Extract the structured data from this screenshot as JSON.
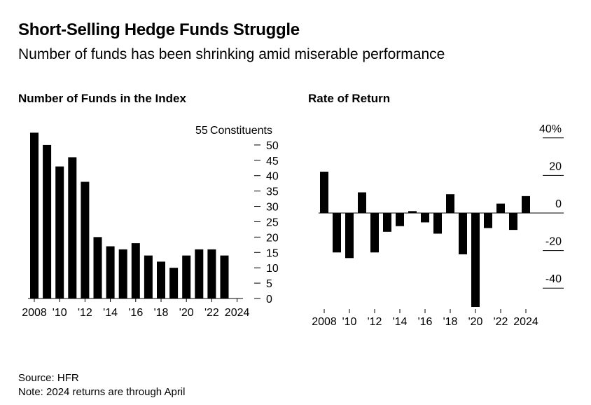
{
  "title": "Short-Selling Hedge Funds Struggle",
  "subtitle": "Number of funds has been shrinking amid miserable performance",
  "source": "Source: HFR",
  "note": "Note: 2024 returns are through April",
  "chart_data": [
    {
      "type": "bar",
      "title": "Number of Funds in the Index",
      "unit_label": "Constituents",
      "categories": [
        "2008",
        "2009",
        "2010",
        "2011",
        "2012",
        "2013",
        "2014",
        "2015",
        "2016",
        "2017",
        "2018",
        "2019",
        "2020",
        "2021",
        "2022",
        "2023",
        "2024"
      ],
      "values": [
        54,
        50,
        43,
        46,
        38,
        20,
        17,
        16,
        18,
        14,
        12,
        10,
        14,
        16,
        16,
        14,
        null
      ],
      "x_tick_labels": [
        "2008",
        "'10",
        "'12",
        "'14",
        "'16",
        "'18",
        "'20",
        "'22",
        "2024"
      ],
      "y_ticks": [
        0,
        5,
        10,
        15,
        20,
        25,
        30,
        35,
        40,
        45,
        50,
        55
      ],
      "ylim": [
        0,
        55
      ]
    },
    {
      "type": "bar",
      "title": "Rate of Return",
      "categories": [
        "2008",
        "2009",
        "2010",
        "2011",
        "2012",
        "2013",
        "2014",
        "2015",
        "2016",
        "2017",
        "2018",
        "2019",
        "2020",
        "2021",
        "2022",
        "2023",
        "2024"
      ],
      "values": [
        22,
        -21,
        -24,
        11,
        -21,
        -10,
        -7,
        1,
        -5,
        -11,
        10,
        -22,
        -50,
        -8,
        5,
        -9,
        9
      ],
      "x_tick_labels": [
        "2008",
        "'10",
        "'12",
        "'14",
        "'16",
        "'18",
        "'20",
        "'22",
        "2024"
      ],
      "y_ticks": [
        -40,
        -20,
        0,
        20,
        40
      ],
      "y_tick_labels": [
        "-40",
        "-20",
        "0",
        "20",
        "40%"
      ],
      "ylim": [
        -50,
        40
      ]
    }
  ]
}
